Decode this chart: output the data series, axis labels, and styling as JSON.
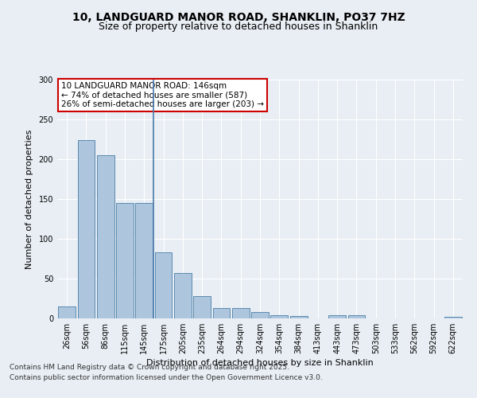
{
  "title_line1": "10, LANDGUARD MANOR ROAD, SHANKLIN, PO37 7HZ",
  "title_line2": "Size of property relative to detached houses in Shanklin",
  "xlabel": "Distribution of detached houses by size in Shanklin",
  "ylabel": "Number of detached properties",
  "background_color": "#e8eef4",
  "bar_color": "#aec6dd",
  "bar_edge_color": "#5a8ab0",
  "categories": [
    "26sqm",
    "56sqm",
    "86sqm",
    "115sqm",
    "145sqm",
    "175sqm",
    "205sqm",
    "235sqm",
    "264sqm",
    "294sqm",
    "324sqm",
    "354sqm",
    "384sqm",
    "413sqm",
    "443sqm",
    "473sqm",
    "503sqm",
    "533sqm",
    "562sqm",
    "592sqm",
    "622sqm"
  ],
  "values": [
    15,
    224,
    205,
    145,
    145,
    83,
    57,
    28,
    13,
    13,
    8,
    4,
    3,
    0,
    4,
    4,
    0,
    0,
    0,
    0,
    2
  ],
  "ylim": [
    0,
    300
  ],
  "yticks": [
    0,
    50,
    100,
    150,
    200,
    250,
    300
  ],
  "vline_x": 4.5,
  "annotation_text": "10 LANDGUARD MANOR ROAD: 146sqm\n← 74% of detached houses are smaller (587)\n26% of semi-detached houses are larger (203) →",
  "annotation_box_color": "#ffffff",
  "annotation_border_color": "#cc0000",
  "footer_line1": "Contains HM Land Registry data © Crown copyright and database right 2025.",
  "footer_line2": "Contains public sector information licensed under the Open Government Licence v3.0.",
  "grid_color": "#ffffff",
  "title_fontsize": 10,
  "subtitle_fontsize": 9,
  "label_fontsize": 8,
  "tick_fontsize": 7,
  "annotation_fontsize": 7.5,
  "footer_fontsize": 6.5
}
